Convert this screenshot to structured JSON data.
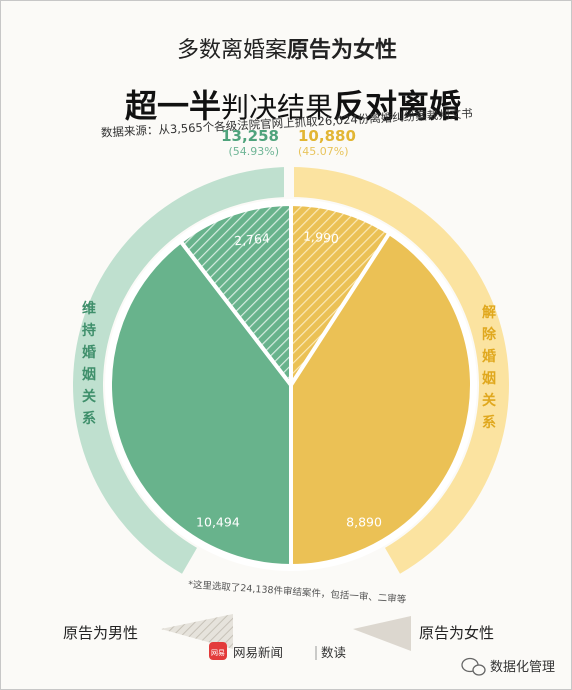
{
  "title": {
    "line1_normal": "多数离婚案",
    "line1_bold": "原告为女性",
    "line2_a": "超一半",
    "line2_b": "判决结果",
    "line2_c": "反对离婚"
  },
  "source_text": "数据来源：从3,565个各级法院官网上抓取26,024份离婚纠纷案裁判文书",
  "chart_data": {
    "type": "pie",
    "groups": [
      {
        "name": "维持婚姻关系",
        "total": "13,258",
        "percent": "(54.93%)",
        "color": "#68b38c",
        "ring_color": "#bfe0cf"
      },
      {
        "name": "解除婚姻关系",
        "total": "10,880",
        "percent": "(45.07%)",
        "color": "#ebc155",
        "ring_color": "#fbe3a0"
      }
    ],
    "slices": [
      {
        "group": "维持婚姻关系",
        "plaintiff": "原告为男性",
        "value": 2764,
        "label": "2,764"
      },
      {
        "group": "维持婚姻关系",
        "plaintiff": "原告为女性",
        "value": 10494,
        "label": "10,494"
      },
      {
        "group": "解除婚姻关系",
        "plaintiff": "原告为女性",
        "value": 8890,
        "label": "8,890"
      },
      {
        "group": "解除婚姻关系",
        "plaintiff": "原告为男性",
        "value": 1990,
        "label": "1,990"
      }
    ],
    "legend": {
      "male": "原告为男性",
      "female": "原告为女性"
    },
    "note": "*这里选取了24,138件审结案件，包括一审、二审等"
  },
  "brand": {
    "logo_text": "网易",
    "name": "网易新闻",
    "sub": "数读"
  },
  "watermark": "数据化管理",
  "colors": {
    "green": "#68b38c",
    "yellow": "#ebc155",
    "green_text": "#4fa37c",
    "yellow_text": "#e2b634"
  }
}
